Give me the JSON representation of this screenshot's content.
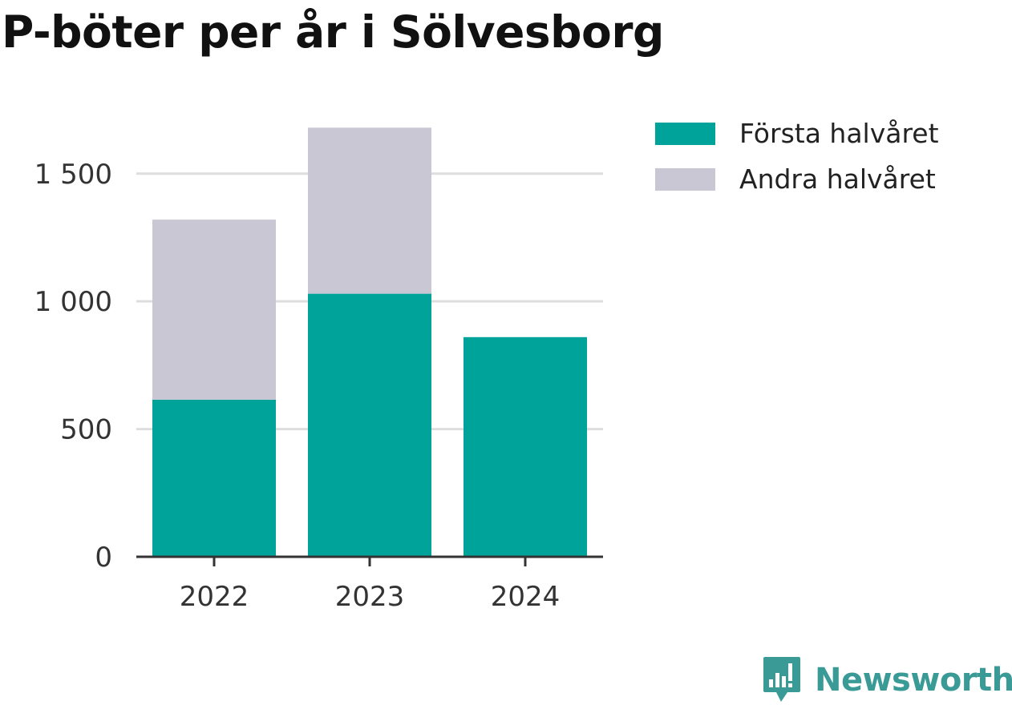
{
  "chart_data": {
    "type": "bar",
    "stacked": true,
    "title": "P-böter per år i Sölvesborg",
    "categories": [
      "2022",
      "2023",
      "2024"
    ],
    "series": [
      {
        "name": "Första halvåret",
        "values": [
          615,
          1030,
          860
        ],
        "color": "#00a39a"
      },
      {
        "name": "Andra halvåret",
        "values": [
          705,
          650,
          0
        ],
        "color": "#c8c7d3"
      }
    ],
    "yticks": [
      0,
      500,
      1000,
      1500
    ],
    "ytick_labels": [
      "0",
      "500",
      "1 000",
      "1 500"
    ],
    "ylim": [
      0,
      1700
    ],
    "grid": true,
    "legend_position": "right"
  },
  "brand": {
    "name": "Newsworthy",
    "icon": "newsworthy-logo-icon",
    "color": "#3a9a95"
  }
}
